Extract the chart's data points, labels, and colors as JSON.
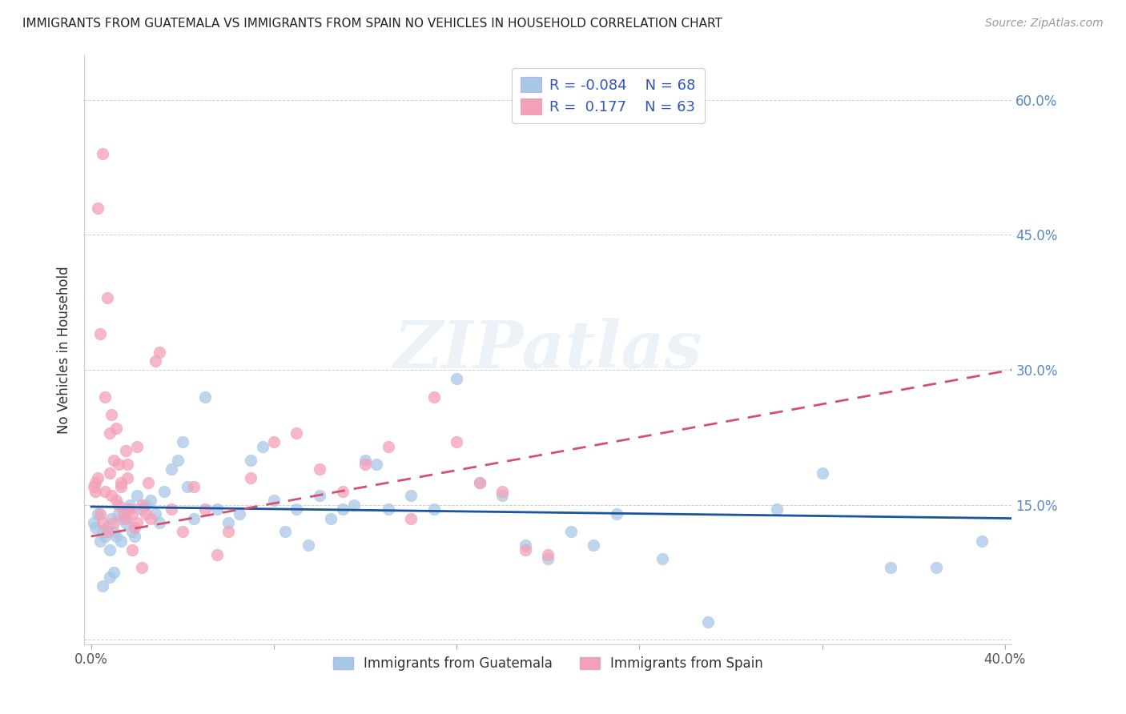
{
  "title": "IMMIGRANTS FROM GUATEMALA VS IMMIGRANTS FROM SPAIN NO VEHICLES IN HOUSEHOLD CORRELATION CHART",
  "source": "Source: ZipAtlas.com",
  "ylabel": "No Vehicles in Household",
  "xlim": [
    -0.003,
    0.403
  ],
  "ylim": [
    -0.005,
    0.65
  ],
  "xticks": [
    0.0,
    0.08,
    0.16,
    0.24,
    0.32,
    0.4
  ],
  "xticklabels": [
    "0.0%",
    "",
    "",
    "",
    "",
    "40.0%"
  ],
  "yticks": [
    0.0,
    0.15,
    0.3,
    0.45,
    0.6
  ],
  "ytick_labels_right": [
    "",
    "15.0%",
    "30.0%",
    "45.0%",
    "60.0%"
  ],
  "legend_label1": "Immigrants from Guatemala",
  "legend_label2": "Immigrants from Spain",
  "R1": -0.084,
  "N1": 68,
  "R2": 0.177,
  "N2": 63,
  "color_guatemala": "#a8c8e8",
  "color_spain": "#f4a0b8",
  "line_color_guatemala": "#1a56a0",
  "line_color_spain": "#d45070",
  "guatemala_x": [
    0.001,
    0.002,
    0.003,
    0.004,
    0.005,
    0.006,
    0.007,
    0.008,
    0.009,
    0.01,
    0.011,
    0.012,
    0.013,
    0.014,
    0.015,
    0.016,
    0.017,
    0.018,
    0.019,
    0.02,
    0.022,
    0.024,
    0.026,
    0.028,
    0.03,
    0.032,
    0.035,
    0.038,
    0.04,
    0.042,
    0.045,
    0.05,
    0.055,
    0.06,
    0.065,
    0.07,
    0.075,
    0.08,
    0.085,
    0.09,
    0.095,
    0.1,
    0.105,
    0.11,
    0.115,
    0.12,
    0.125,
    0.13,
    0.14,
    0.15,
    0.16,
    0.17,
    0.18,
    0.19,
    0.2,
    0.21,
    0.22,
    0.23,
    0.25,
    0.27,
    0.3,
    0.32,
    0.35,
    0.37,
    0.39,
    0.005,
    0.008,
    0.01
  ],
  "guatemala_y": [
    0.13,
    0.125,
    0.14,
    0.11,
    0.12,
    0.115,
    0.125,
    0.1,
    0.135,
    0.12,
    0.115,
    0.14,
    0.11,
    0.135,
    0.13,
    0.145,
    0.15,
    0.12,
    0.115,
    0.16,
    0.145,
    0.15,
    0.155,
    0.14,
    0.13,
    0.165,
    0.19,
    0.2,
    0.22,
    0.17,
    0.135,
    0.27,
    0.145,
    0.13,
    0.14,
    0.2,
    0.215,
    0.155,
    0.12,
    0.145,
    0.105,
    0.16,
    0.135,
    0.145,
    0.15,
    0.2,
    0.195,
    0.145,
    0.16,
    0.145,
    0.29,
    0.175,
    0.16,
    0.105,
    0.09,
    0.12,
    0.105,
    0.14,
    0.09,
    0.02,
    0.145,
    0.185,
    0.08,
    0.08,
    0.11,
    0.06,
    0.07,
    0.075
  ],
  "spain_x": [
    0.001,
    0.002,
    0.003,
    0.004,
    0.005,
    0.006,
    0.007,
    0.008,
    0.009,
    0.01,
    0.011,
    0.012,
    0.013,
    0.014,
    0.015,
    0.016,
    0.017,
    0.018,
    0.019,
    0.02,
    0.022,
    0.024,
    0.026,
    0.028,
    0.03,
    0.035,
    0.04,
    0.045,
    0.05,
    0.055,
    0.06,
    0.07,
    0.08,
    0.09,
    0.1,
    0.11,
    0.12,
    0.13,
    0.14,
    0.15,
    0.16,
    0.17,
    0.18,
    0.19,
    0.2,
    0.01,
    0.012,
    0.015,
    0.02,
    0.025,
    0.005,
    0.007,
    0.009,
    0.003,
    0.004,
    0.006,
    0.002,
    0.008,
    0.011,
    0.013,
    0.016,
    0.018,
    0.022
  ],
  "spain_y": [
    0.17,
    0.175,
    0.18,
    0.14,
    0.13,
    0.165,
    0.12,
    0.185,
    0.16,
    0.13,
    0.155,
    0.15,
    0.17,
    0.14,
    0.135,
    0.18,
    0.145,
    0.14,
    0.125,
    0.13,
    0.15,
    0.14,
    0.135,
    0.31,
    0.32,
    0.145,
    0.12,
    0.17,
    0.145,
    0.095,
    0.12,
    0.18,
    0.22,
    0.23,
    0.19,
    0.165,
    0.195,
    0.215,
    0.135,
    0.27,
    0.22,
    0.175,
    0.165,
    0.1,
    0.095,
    0.2,
    0.195,
    0.21,
    0.215,
    0.175,
    0.54,
    0.38,
    0.25,
    0.48,
    0.34,
    0.27,
    0.165,
    0.23,
    0.235,
    0.175,
    0.195,
    0.1,
    0.08
  ],
  "line_guatemala_x0": 0.0,
  "line_guatemala_x1": 0.403,
  "line_guatemala_y0": 0.148,
  "line_guatemala_y1": 0.135,
  "line_spain_x0": 0.0,
  "line_spain_x1": 0.403,
  "line_spain_y0": 0.115,
  "line_spain_y1": 0.3
}
